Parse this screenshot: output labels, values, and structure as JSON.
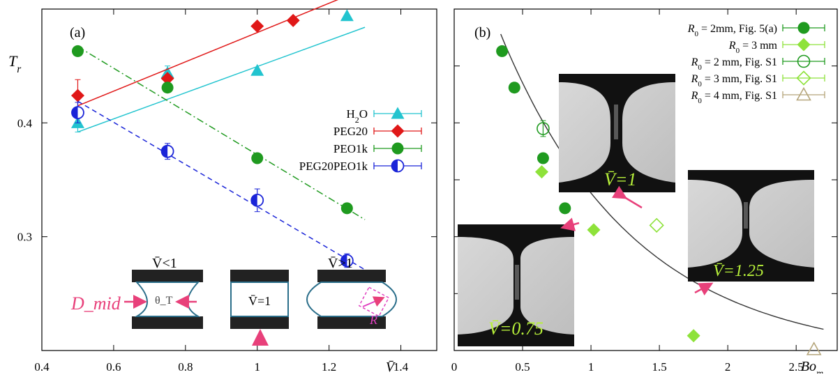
{
  "figure": {
    "panel_a_label": "(a)",
    "panel_b_label": "(b)"
  },
  "chart_data": [
    {
      "type": "scatter",
      "panel": "(a)",
      "ylabel": "T_r",
      "xlabel": "V̄",
      "xlim": [
        0.4,
        1.5
      ],
      "ylim": [
        0.2,
        0.5
      ],
      "xticks": [
        "0.4",
        "0.6",
        "0.8",
        "1",
        "1.2",
        "1.4"
      ],
      "yticks": [
        "0.3",
        "0.4"
      ],
      "grid": false,
      "legend_position": "right",
      "series": [
        {
          "name": "H2O",
          "color": "#22c4cf",
          "marker": "triangle",
          "x": [
            0.5,
            0.75,
            1.0,
            1.25
          ],
          "y": [
            0.4,
            0.444,
            0.446,
            0.494
          ],
          "err": [
            0.008,
            0.006,
            0,
            0
          ],
          "fit": [
            [
              0.5,
              0.392
            ],
            [
              1.3,
              0.484
            ]
          ],
          "fit_style": "solid"
        },
        {
          "name": "PEG20",
          "color": "#e01818",
          "marker": "diamond",
          "x": [
            0.5,
            0.75,
            1.0,
            1.1
          ],
          "y": [
            0.424,
            0.439,
            0.485,
            0.49
          ],
          "err": [
            0.014,
            0,
            0,
            0
          ],
          "fit": [
            [
              0.5,
              0.415
            ],
            [
              1.3,
              0.518
            ]
          ],
          "fit_style": "solid"
        },
        {
          "name": "PEO1k",
          "color": "#1f9a1f",
          "marker": "circle",
          "x": [
            0.5,
            0.75,
            1.0,
            1.25
          ],
          "y": [
            0.463,
            0.431,
            0.369,
            0.325
          ],
          "err": [
            0,
            0,
            0,
            0
          ],
          "fit": [
            [
              0.5,
              0.467
            ],
            [
              1.3,
              0.315
            ]
          ],
          "fit_style": "dashdot"
        },
        {
          "name": "PEG20PEO1k",
          "color": "#1a24d8",
          "marker": "half-circle",
          "x": [
            0.5,
            0.75,
            1.0,
            1.25
          ],
          "y": [
            0.409,
            0.375,
            0.332,
            0.279
          ],
          "err": [
            0.009,
            0.007,
            0.01,
            0.006
          ],
          "fit": [
            [
              0.5,
              0.419
            ],
            [
              1.3,
              0.271
            ]
          ],
          "fit_style": "dashed"
        }
      ],
      "schematic": {
        "label_lt": "V̄<1",
        "label_eq": "V̄=1",
        "label_gt": "V̄>1",
        "dmid": "D_mid",
        "theta": "θ_T",
        "radius": "R"
      }
    },
    {
      "type": "scatter",
      "panel": "(b)",
      "xlabel": "Bo_m",
      "xlim": [
        0,
        2.8
      ],
      "xticks": [
        "0",
        "0.5",
        "1",
        "1.5",
        "2",
        "2.5"
      ],
      "yticks": [],
      "grid": false,
      "legend_position": "top-right",
      "shared_y_with": "(a)",
      "series": [
        {
          "name": "R0 = 2mm, Fig. 5(a)",
          "color": "#1f9a1f",
          "marker": "circle",
          "x": [
            0.35,
            0.44,
            0.65,
            0.81
          ],
          "y": [
            0.463,
            0.431,
            0.369,
            0.325
          ]
        },
        {
          "name": "R0 = 3 mm",
          "color": "#8ee23a",
          "marker": "diamond",
          "x": [
            0.64,
            1.02,
            1.75
          ],
          "y": [
            0.357,
            0.306,
            0.213
          ]
        },
        {
          "name": "R0 = 2 mm, Fig. S1",
          "color": "#1f9a1f",
          "marker": "open-circle",
          "x": [
            0.65
          ],
          "y": [
            0.395
          ],
          "err": [
            0.007
          ]
        },
        {
          "name": "R0 = 3 mm, Fig. S1",
          "color": "#8ee23a",
          "marker": "open-diamond",
          "x": [
            1.48
          ],
          "y": [
            0.31
          ]
        },
        {
          "name": "R0 = 4 mm, Fig. S1",
          "color": "#b5a57a",
          "marker": "open-triangle",
          "x": [
            2.63
          ],
          "y": [
            0.201
          ]
        }
      ],
      "curve": {
        "a": 0.175,
        "b": -0.47,
        "x": [
          0.34,
          2.7
        ]
      },
      "inset_labels": [
        "V̄=1",
        "V̄=0.75",
        "V̄=1.25"
      ]
    }
  ]
}
